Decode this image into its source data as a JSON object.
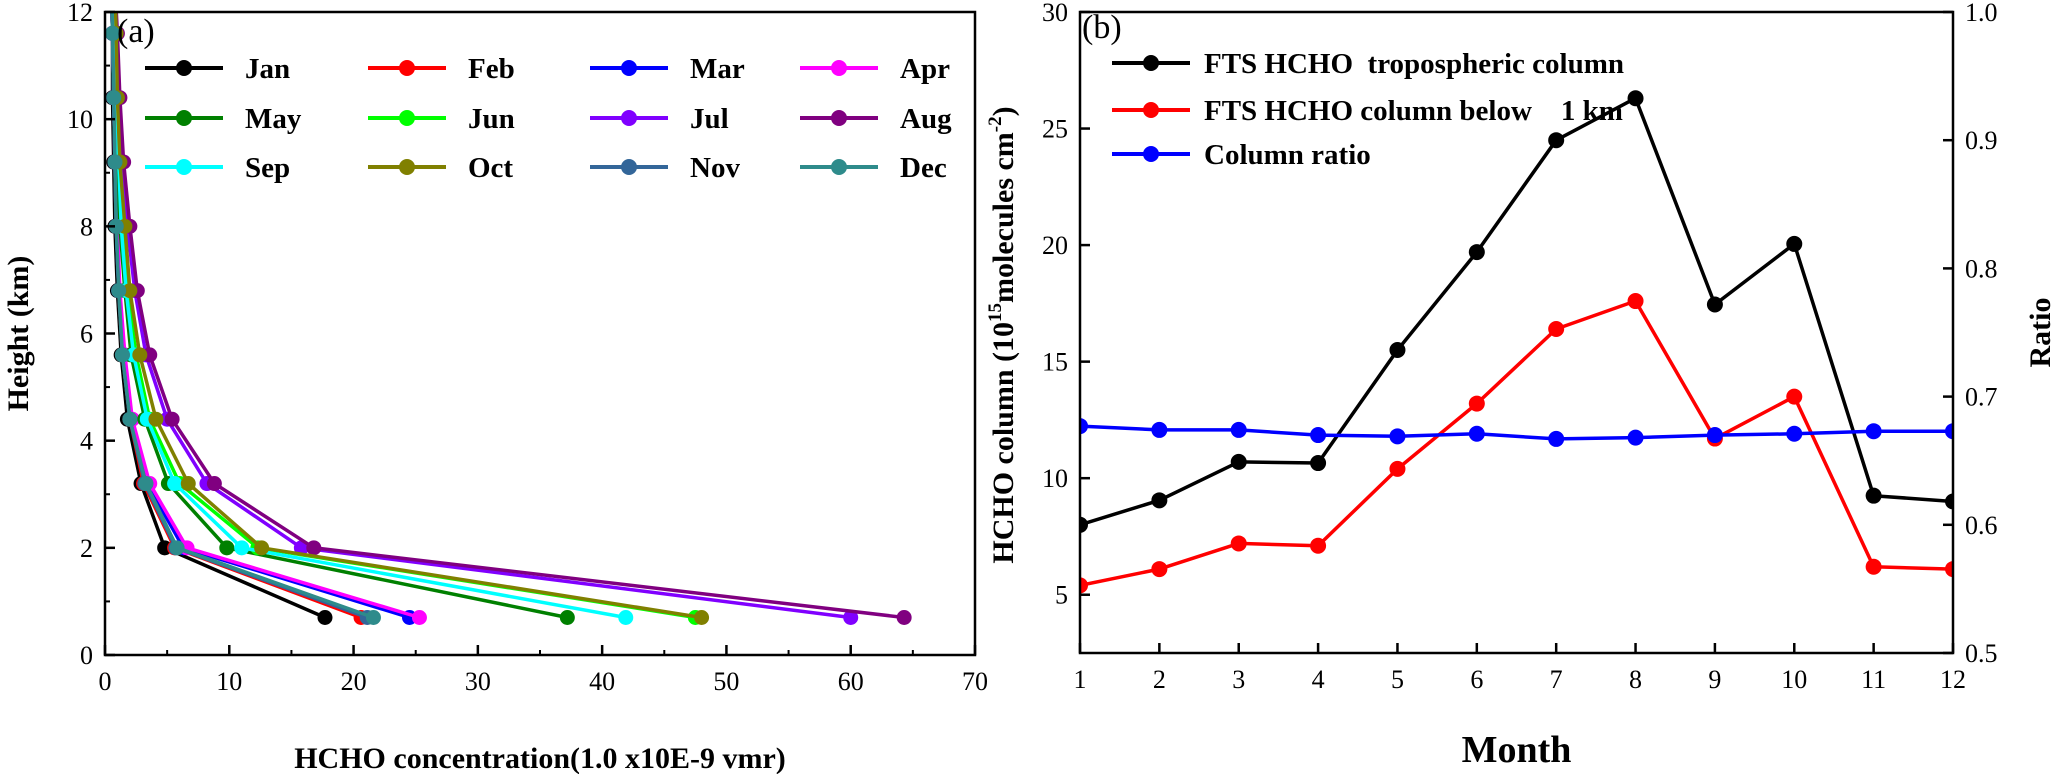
{
  "chart_data": [
    {
      "panel": "(a)",
      "type": "line",
      "xlabel": "HCHO concentration(1.0 x10E-9 vmr)",
      "ylabel": "Height (km)",
      "xlim": [
        0,
        70
      ],
      "ylim": [
        0,
        12
      ],
      "xticks": [
        0,
        10,
        20,
        30,
        40,
        50,
        60,
        70
      ],
      "yticks": [
        0,
        2,
        4,
        6,
        8,
        10,
        12
      ],
      "grid": false,
      "legend_position": "top-right",
      "heights": [
        0.7,
        2.0,
        3.2,
        4.4,
        5.6,
        6.8,
        8.0,
        9.2,
        10.4,
        11.6,
        12.5
      ],
      "series": [
        {
          "name": "Jan",
          "color": "#000000",
          "x": [
            17.7,
            4.8,
            2.9,
            1.8,
            1.3,
            1.0,
            0.8,
            0.7,
            0.6,
            0.6,
            0.5
          ]
        },
        {
          "name": "Feb",
          "color": "#ff0000",
          "x": [
            20.6,
            5.6,
            3.1,
            2.0,
            1.4,
            1.1,
            0.9,
            0.8,
            0.7,
            0.6,
            0.5
          ]
        },
        {
          "name": "Mar",
          "color": "#0000ff",
          "x": [
            24.5,
            6.3,
            3.4,
            2.1,
            1.5,
            1.1,
            0.9,
            0.8,
            0.7,
            0.6,
            0.5
          ]
        },
        {
          "name": "Apr",
          "color": "#ff00ff",
          "x": [
            25.3,
            6.6,
            3.6,
            2.2,
            1.6,
            1.2,
            1.0,
            0.8,
            0.7,
            0.6,
            0.5
          ]
        },
        {
          "name": "May",
          "color": "#008000",
          "x": [
            37.2,
            9.8,
            5.1,
            3.2,
            2.1,
            1.6,
            1.2,
            1.0,
            0.8,
            0.7,
            0.6
          ]
        },
        {
          "name": "Jun",
          "color": "#00ff00",
          "x": [
            47.5,
            12.3,
            6.0,
            3.6,
            2.5,
            1.8,
            1.4,
            1.1,
            0.9,
            0.8,
            0.7
          ]
        },
        {
          "name": "Jul",
          "color": "#8000ff",
          "x": [
            60.0,
            15.8,
            8.2,
            5.0,
            3.3,
            2.4,
            1.8,
            1.4,
            1.1,
            0.9,
            0.8
          ]
        },
        {
          "name": "Aug",
          "color": "#800080",
          "x": [
            64.3,
            16.8,
            8.8,
            5.4,
            3.6,
            2.6,
            2.0,
            1.5,
            1.2,
            1.0,
            0.8
          ]
        },
        {
          "name": "Sep",
          "color": "#00ffff",
          "x": [
            41.9,
            11.0,
            5.6,
            3.4,
            2.3,
            1.7,
            1.3,
            1.1,
            0.9,
            0.8,
            0.7
          ]
        },
        {
          "name": "Oct",
          "color": "#808000",
          "x": [
            48.0,
            12.6,
            6.7,
            4.1,
            2.8,
            2.0,
            1.6,
            1.2,
            1.0,
            0.9,
            0.8
          ]
        },
        {
          "name": "Nov",
          "color": "#336699",
          "x": [
            21.1,
            5.7,
            3.2,
            2.0,
            1.4,
            1.1,
            0.9,
            0.8,
            0.7,
            0.6,
            0.5
          ]
        },
        {
          "name": "Dec",
          "color": "#2e8b8b",
          "x": [
            21.6,
            5.8,
            3.3,
            2.0,
            1.4,
            1.1,
            0.9,
            0.8,
            0.7,
            0.6,
            0.5
          ]
        }
      ]
    },
    {
      "panel": "(b)",
      "type": "line",
      "xlabel": "Month",
      "ylabel_main": "HCHO  column (10",
      "ylabel_exp": "15",
      "ylabel_mid": "molecules cm",
      "ylabel_exp2": "-2",
      "ylabel_close": ")",
      "y2label": "Ratio",
      "xlim": [
        1,
        12
      ],
      "ylim": [
        2.5,
        30
      ],
      "y2lim": [
        0.5,
        1.0
      ],
      "xticks": [
        1,
        2,
        3,
        4,
        5,
        6,
        7,
        8,
        9,
        10,
        11,
        12
      ],
      "yticks": [
        5,
        10,
        15,
        20,
        25,
        30
      ],
      "y2ticks": [
        "0.5",
        "0.6",
        "0.7",
        "0.8",
        "0.9",
        "1.0"
      ],
      "grid": false,
      "legend_position": "top-left",
      "months": [
        1,
        2,
        3,
        4,
        5,
        6,
        7,
        8,
        9,
        10,
        11,
        12
      ],
      "series": [
        {
          "name": "FTS HCHO  tropospheric column",
          "color": "#000000",
          "axis": "left",
          "values": [
            8.0,
            9.05,
            10.7,
            10.65,
            15.5,
            19.7,
            24.5,
            26.3,
            17.45,
            20.05,
            9.25,
            9.0
          ]
        },
        {
          "name": "FTS HCHO column below    1 km",
          "color": "#ff0000",
          "axis": "left",
          "values": [
            5.4,
            6.1,
            7.2,
            7.1,
            10.4,
            13.2,
            16.4,
            17.6,
            11.7,
            13.5,
            6.2,
            6.1
          ]
        },
        {
          "name": "Column ratio",
          "color": "#0000ff",
          "axis": "right",
          "values": [
            0.677,
            0.674,
            0.674,
            0.67,
            0.669,
            0.671,
            0.667,
            0.668,
            0.67,
            0.671,
            0.673,
            0.673
          ]
        }
      ]
    }
  ]
}
